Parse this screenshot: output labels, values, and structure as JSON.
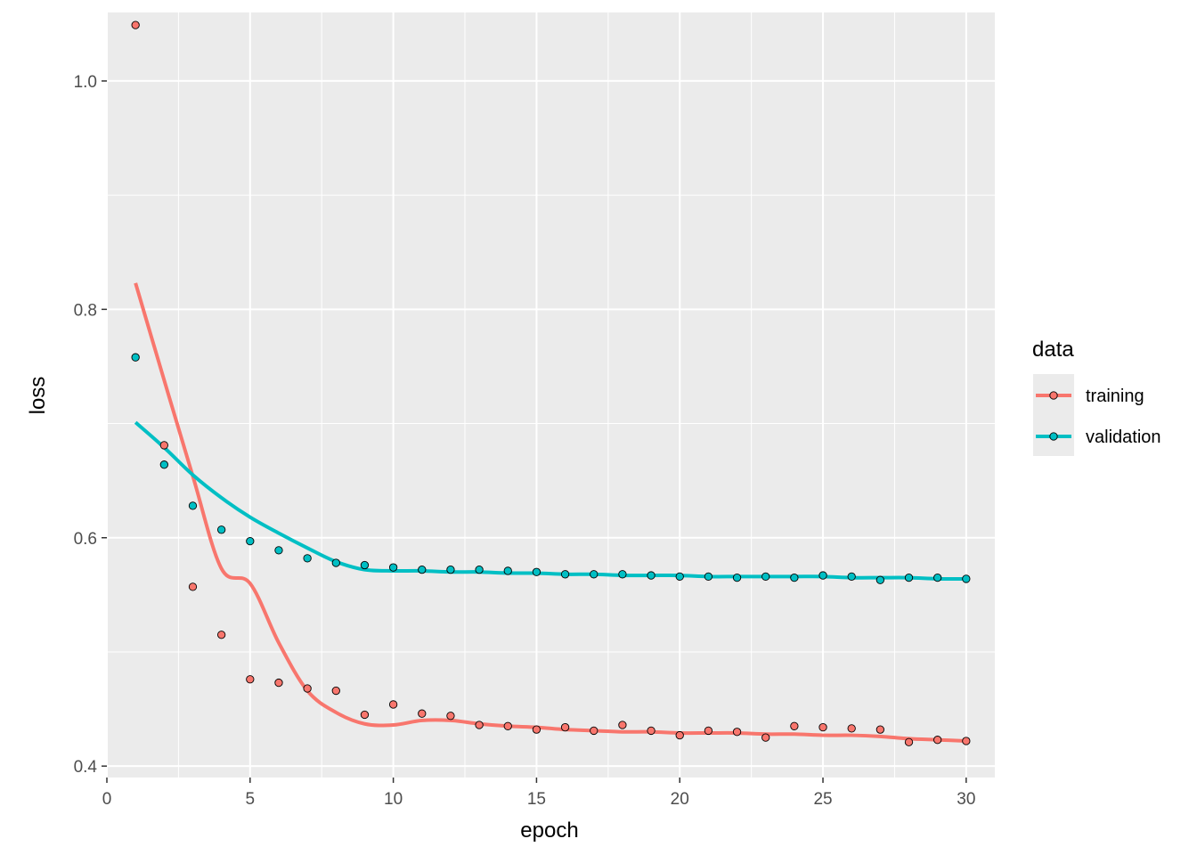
{
  "chart_data": {
    "type": "line",
    "xlabel": "epoch",
    "ylabel": "loss",
    "xlim": [
      0,
      31
    ],
    "ylim": [
      0.39,
      1.06
    ],
    "x_ticks": [
      0,
      5,
      10,
      15,
      20,
      25,
      30
    ],
    "x_tick_labels": [
      "0",
      "5",
      "10",
      "15",
      "20",
      "25",
      "30"
    ],
    "y_ticks": [
      0.4,
      0.6,
      0.8,
      1.0
    ],
    "y_tick_labels": [
      "0.4",
      "0.6",
      "0.8",
      "1.0"
    ],
    "grid": true,
    "legend": {
      "title": "data",
      "position": "right"
    },
    "series": [
      {
        "name": "training",
        "color": "#F8766D",
        "x": [
          1,
          2,
          3,
          4,
          5,
          6,
          7,
          8,
          9,
          10,
          11,
          12,
          13,
          14,
          15,
          16,
          17,
          18,
          19,
          20,
          21,
          22,
          23,
          24,
          25,
          26,
          27,
          28,
          29,
          30
        ],
        "values": [
          1.049,
          0.681,
          0.557,
          0.515,
          0.476,
          0.473,
          0.468,
          0.466,
          0.445,
          0.454,
          0.446,
          0.444,
          0.436,
          0.435,
          0.432,
          0.434,
          0.431,
          0.436,
          0.431,
          0.427,
          0.431,
          0.43,
          0.425,
          0.435,
          0.434,
          0.433,
          0.432,
          0.421,
          0.423,
          0.422
        ],
        "smooth": [
          [
            1,
            0.823
          ],
          [
            2,
            0.738
          ],
          [
            3,
            0.654
          ],
          [
            4,
            0.573
          ],
          [
            5,
            0.56
          ],
          [
            6,
            0.508
          ],
          [
            7,
            0.466
          ],
          [
            8,
            0.447
          ],
          [
            9,
            0.437
          ],
          [
            10,
            0.436
          ],
          [
            11,
            0.44
          ],
          [
            12,
            0.44
          ],
          [
            13,
            0.437
          ],
          [
            14,
            0.435
          ],
          [
            15,
            0.434
          ],
          [
            16,
            0.432
          ],
          [
            17,
            0.431
          ],
          [
            18,
            0.43
          ],
          [
            19,
            0.43
          ],
          [
            20,
            0.429
          ],
          [
            21,
            0.429
          ],
          [
            22,
            0.429
          ],
          [
            23,
            0.428
          ],
          [
            24,
            0.428
          ],
          [
            25,
            0.427
          ],
          [
            26,
            0.427
          ],
          [
            27,
            0.426
          ],
          [
            28,
            0.424
          ],
          [
            29,
            0.423
          ],
          [
            30,
            0.422
          ]
        ]
      },
      {
        "name": "validation",
        "color": "#00BFC4",
        "x": [
          1,
          2,
          3,
          4,
          5,
          6,
          7,
          8,
          9,
          10,
          11,
          12,
          13,
          14,
          15,
          16,
          17,
          18,
          19,
          20,
          21,
          22,
          23,
          24,
          25,
          26,
          27,
          28,
          29,
          30
        ],
        "values": [
          0.758,
          0.664,
          0.628,
          0.607,
          0.597,
          0.589,
          0.582,
          0.578,
          0.576,
          0.574,
          0.572,
          0.572,
          0.572,
          0.571,
          0.57,
          0.568,
          0.568,
          0.568,
          0.567,
          0.566,
          0.566,
          0.565,
          0.566,
          0.565,
          0.567,
          0.566,
          0.563,
          0.565,
          0.565,
          0.564
        ],
        "smooth": [
          [
            1,
            0.701
          ],
          [
            2,
            0.679
          ],
          [
            3,
            0.655
          ],
          [
            4,
            0.635
          ],
          [
            5,
            0.618
          ],
          [
            6,
            0.604
          ],
          [
            7,
            0.591
          ],
          [
            8,
            0.579
          ],
          [
            9,
            0.572
          ],
          [
            10,
            0.571
          ],
          [
            11,
            0.571
          ],
          [
            12,
            0.57
          ],
          [
            13,
            0.57
          ],
          [
            14,
            0.569
          ],
          [
            15,
            0.569
          ],
          [
            16,
            0.568
          ],
          [
            17,
            0.568
          ],
          [
            18,
            0.567
          ],
          [
            19,
            0.567
          ],
          [
            20,
            0.567
          ],
          [
            21,
            0.566
          ],
          [
            22,
            0.566
          ],
          [
            23,
            0.566
          ],
          [
            24,
            0.566
          ],
          [
            25,
            0.566
          ],
          [
            26,
            0.565
          ],
          [
            27,
            0.565
          ],
          [
            28,
            0.565
          ],
          [
            29,
            0.564
          ],
          [
            30,
            0.564
          ]
        ]
      }
    ]
  }
}
